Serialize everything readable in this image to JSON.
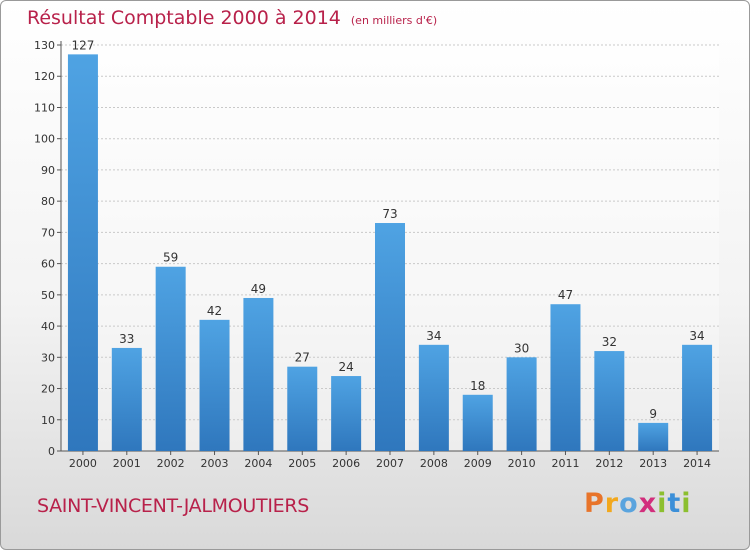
{
  "header": {
    "title": "Résultat Comptable 2000 à 2014",
    "unit": "(en milliers d'€)"
  },
  "footer": {
    "city": "SAINT-VINCENT-JALMOUTIERS",
    "logo_letters": [
      "P",
      "r",
      "o",
      "x",
      "i",
      "t",
      "i"
    ],
    "logo_colors": [
      "#e8742a",
      "#f2a81d",
      "#5aa4de",
      "#d22e7c",
      "#8cbf2f",
      "#3b8fd8",
      "#8cbf2f"
    ]
  },
  "chart_data": {
    "type": "bar",
    "title": "Résultat Comptable 2000 à 2014",
    "categories": [
      "2000",
      "2001",
      "2002",
      "2003",
      "2004",
      "2005",
      "2006",
      "2007",
      "2008",
      "2009",
      "2010",
      "2011",
      "2012",
      "2013",
      "2014"
    ],
    "values": [
      127,
      33,
      59,
      42,
      49,
      27,
      24,
      73,
      34,
      18,
      30,
      47,
      32,
      9,
      34
    ],
    "ylim": [
      0,
      130
    ],
    "yticks": [
      0,
      10,
      20,
      30,
      40,
      50,
      60,
      70,
      80,
      90,
      100,
      110,
      120,
      130
    ],
    "grid": true,
    "bar_color": "#4fa3e3",
    "bar_color_dark": "#2f77bd",
    "label_color": "#333333"
  }
}
